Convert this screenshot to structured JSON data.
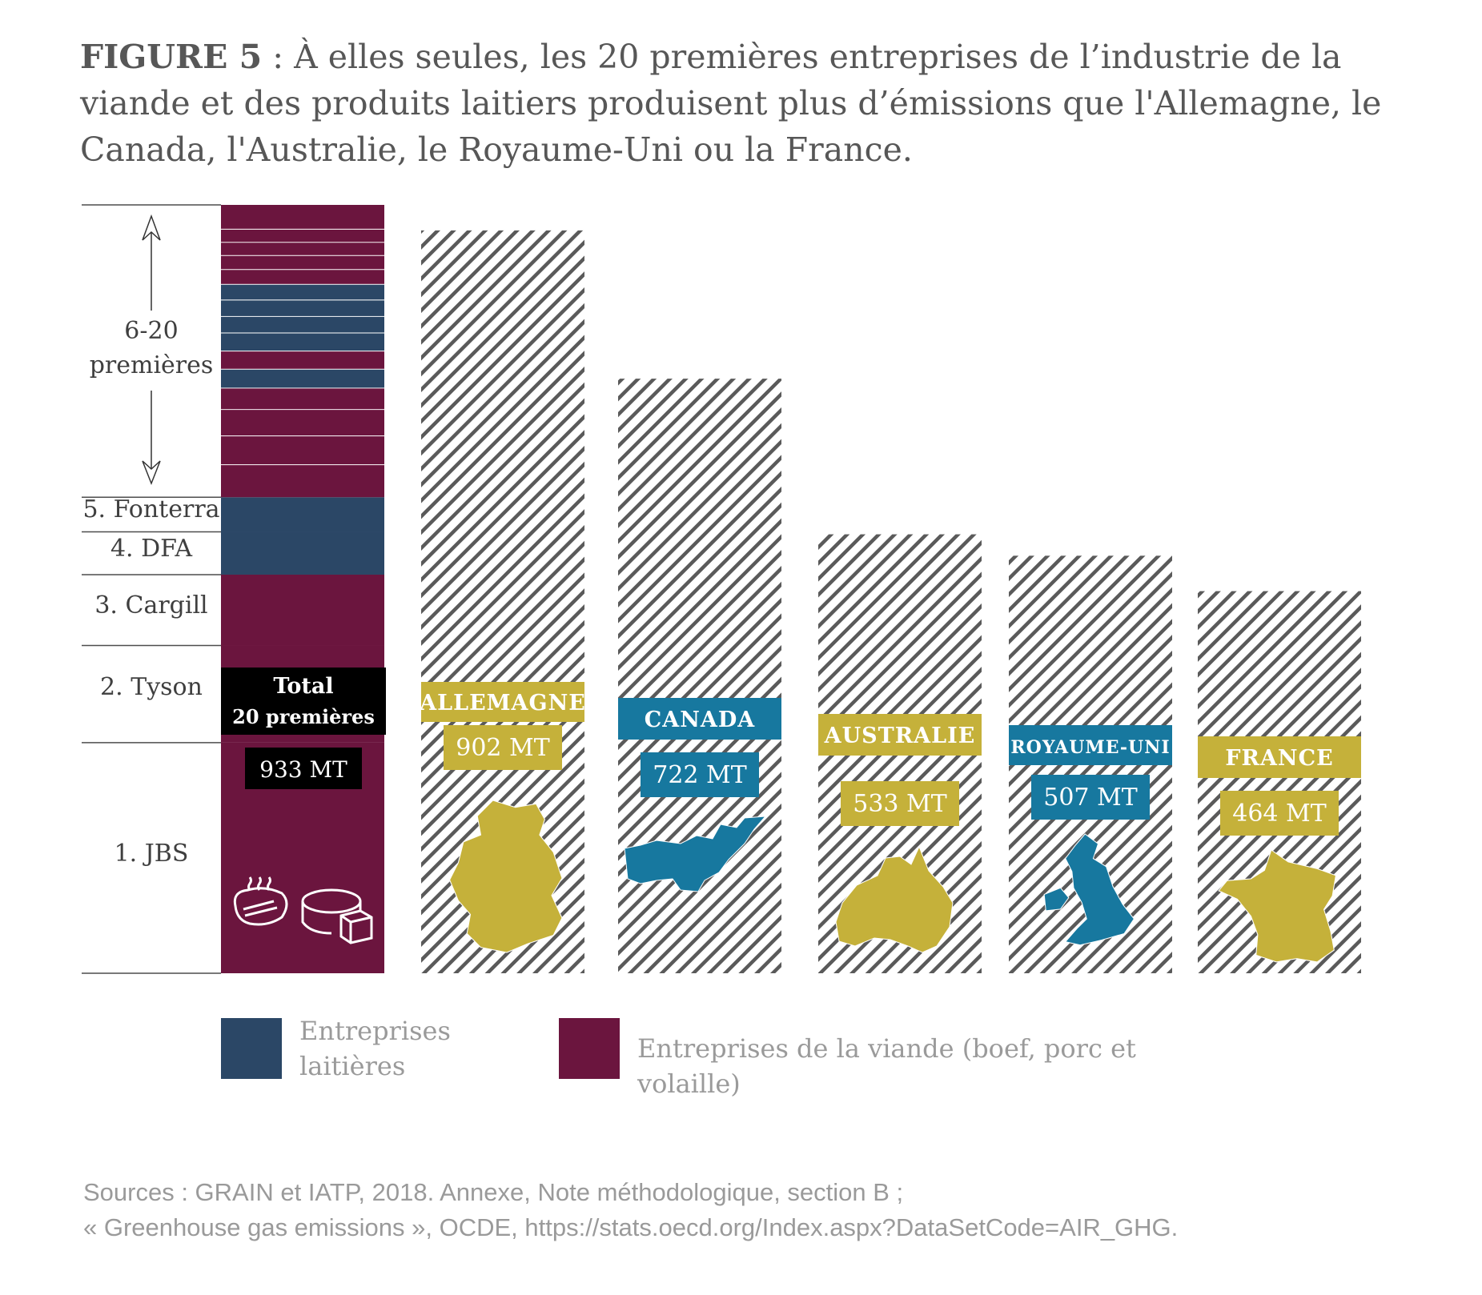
{
  "title": {
    "prefix": "FIGURE 5",
    "text": " : À elles seules, les 20 premières entreprises de l’industrie de la viande et des produits laitiers produisent plus d’émissions que l'Allemagne, le Canada, l'Australie, le Royaume-Uni ou la France."
  },
  "colors": {
    "dairy": "#2b4766",
    "meat": "#6b153e",
    "mustard": "#c5b13a",
    "teal": "#17789f",
    "hatch": "#5a5a5a",
    "black": "#000000"
  },
  "chart_data": {
    "type": "bar",
    "unit": "MT",
    "companies_stack": {
      "total_label_line1": "Total",
      "total_label_line2": "20 premières",
      "total_value_label": "933 MT",
      "total_value": 933,
      "group_label_line1": "6-20",
      "group_label_line2": "premières",
      "segments": [
        {
          "label": "1. JBS",
          "kind": "meat",
          "value": 280
        },
        {
          "label": "2. Tyson",
          "kind": "meat",
          "value": 118
        },
        {
          "label": "3. Cargill",
          "kind": "meat",
          "value": 86
        },
        {
          "label": "4. DFA",
          "kind": "dairy",
          "value": 52
        },
        {
          "label": "5. Fonterra",
          "kind": "dairy",
          "value": 42
        },
        {
          "label": "",
          "kind": "meat",
          "value": 40
        },
        {
          "label": "",
          "kind": "meat",
          "value": 35
        },
        {
          "label": "",
          "kind": "meat",
          "value": 32
        },
        {
          "label": "",
          "kind": "meat",
          "value": 26
        },
        {
          "label": "",
          "kind": "dairy",
          "value": 23
        },
        {
          "label": "",
          "kind": "meat",
          "value": 22
        },
        {
          "label": "",
          "kind": "dairy",
          "value": 22
        },
        {
          "label": "",
          "kind": "dairy",
          "value": 20
        },
        {
          "label": "",
          "kind": "dairy",
          "value": 20
        },
        {
          "label": "",
          "kind": "dairy",
          "value": 19
        },
        {
          "label": "",
          "kind": "meat",
          "value": 18
        },
        {
          "label": "",
          "kind": "meat",
          "value": 17
        },
        {
          "label": "",
          "kind": "meat",
          "value": 16
        },
        {
          "label": "",
          "kind": "meat",
          "value": 16
        },
        {
          "label": "",
          "kind": "meat",
          "value": 29
        }
      ]
    },
    "countries": [
      {
        "name": "Allemagne",
        "value": 902,
        "value_label": "902 MT",
        "color": "mustard",
        "map_icon": "germany-map-icon"
      },
      {
        "name": "Canada",
        "value": 722,
        "value_label": "722 MT",
        "color": "teal",
        "map_icon": "canada-map-icon"
      },
      {
        "name": "Australie",
        "value": 533,
        "value_label": "533 MT",
        "color": "mustard",
        "map_icon": "australia-map-icon"
      },
      {
        "name": "Royaume-Uni",
        "value": 507,
        "value_label": "507 MT",
        "color": "teal",
        "map_icon": "uk-map-icon"
      },
      {
        "name": "France",
        "value": 464,
        "value_label": "464 MT",
        "color": "mustard",
        "map_icon": "france-map-icon"
      }
    ],
    "ylim": [
      0,
      933
    ]
  },
  "icons": [
    "steak-icon",
    "cheese-icon"
  ],
  "legend": {
    "dairy_label": "Entreprises laitières",
    "meat_label": "Entreprises de la viande (boef, porc et volaille)"
  },
  "sources": {
    "line1": "Sources : GRAIN et IATP, 2018. Annexe, Note méthodologique, section B ;",
    "line2": " « Greenhouse gas emissions », OCDE, https://stats.oecd.org/Index.aspx?DataSetCode=AIR_GHG."
  }
}
